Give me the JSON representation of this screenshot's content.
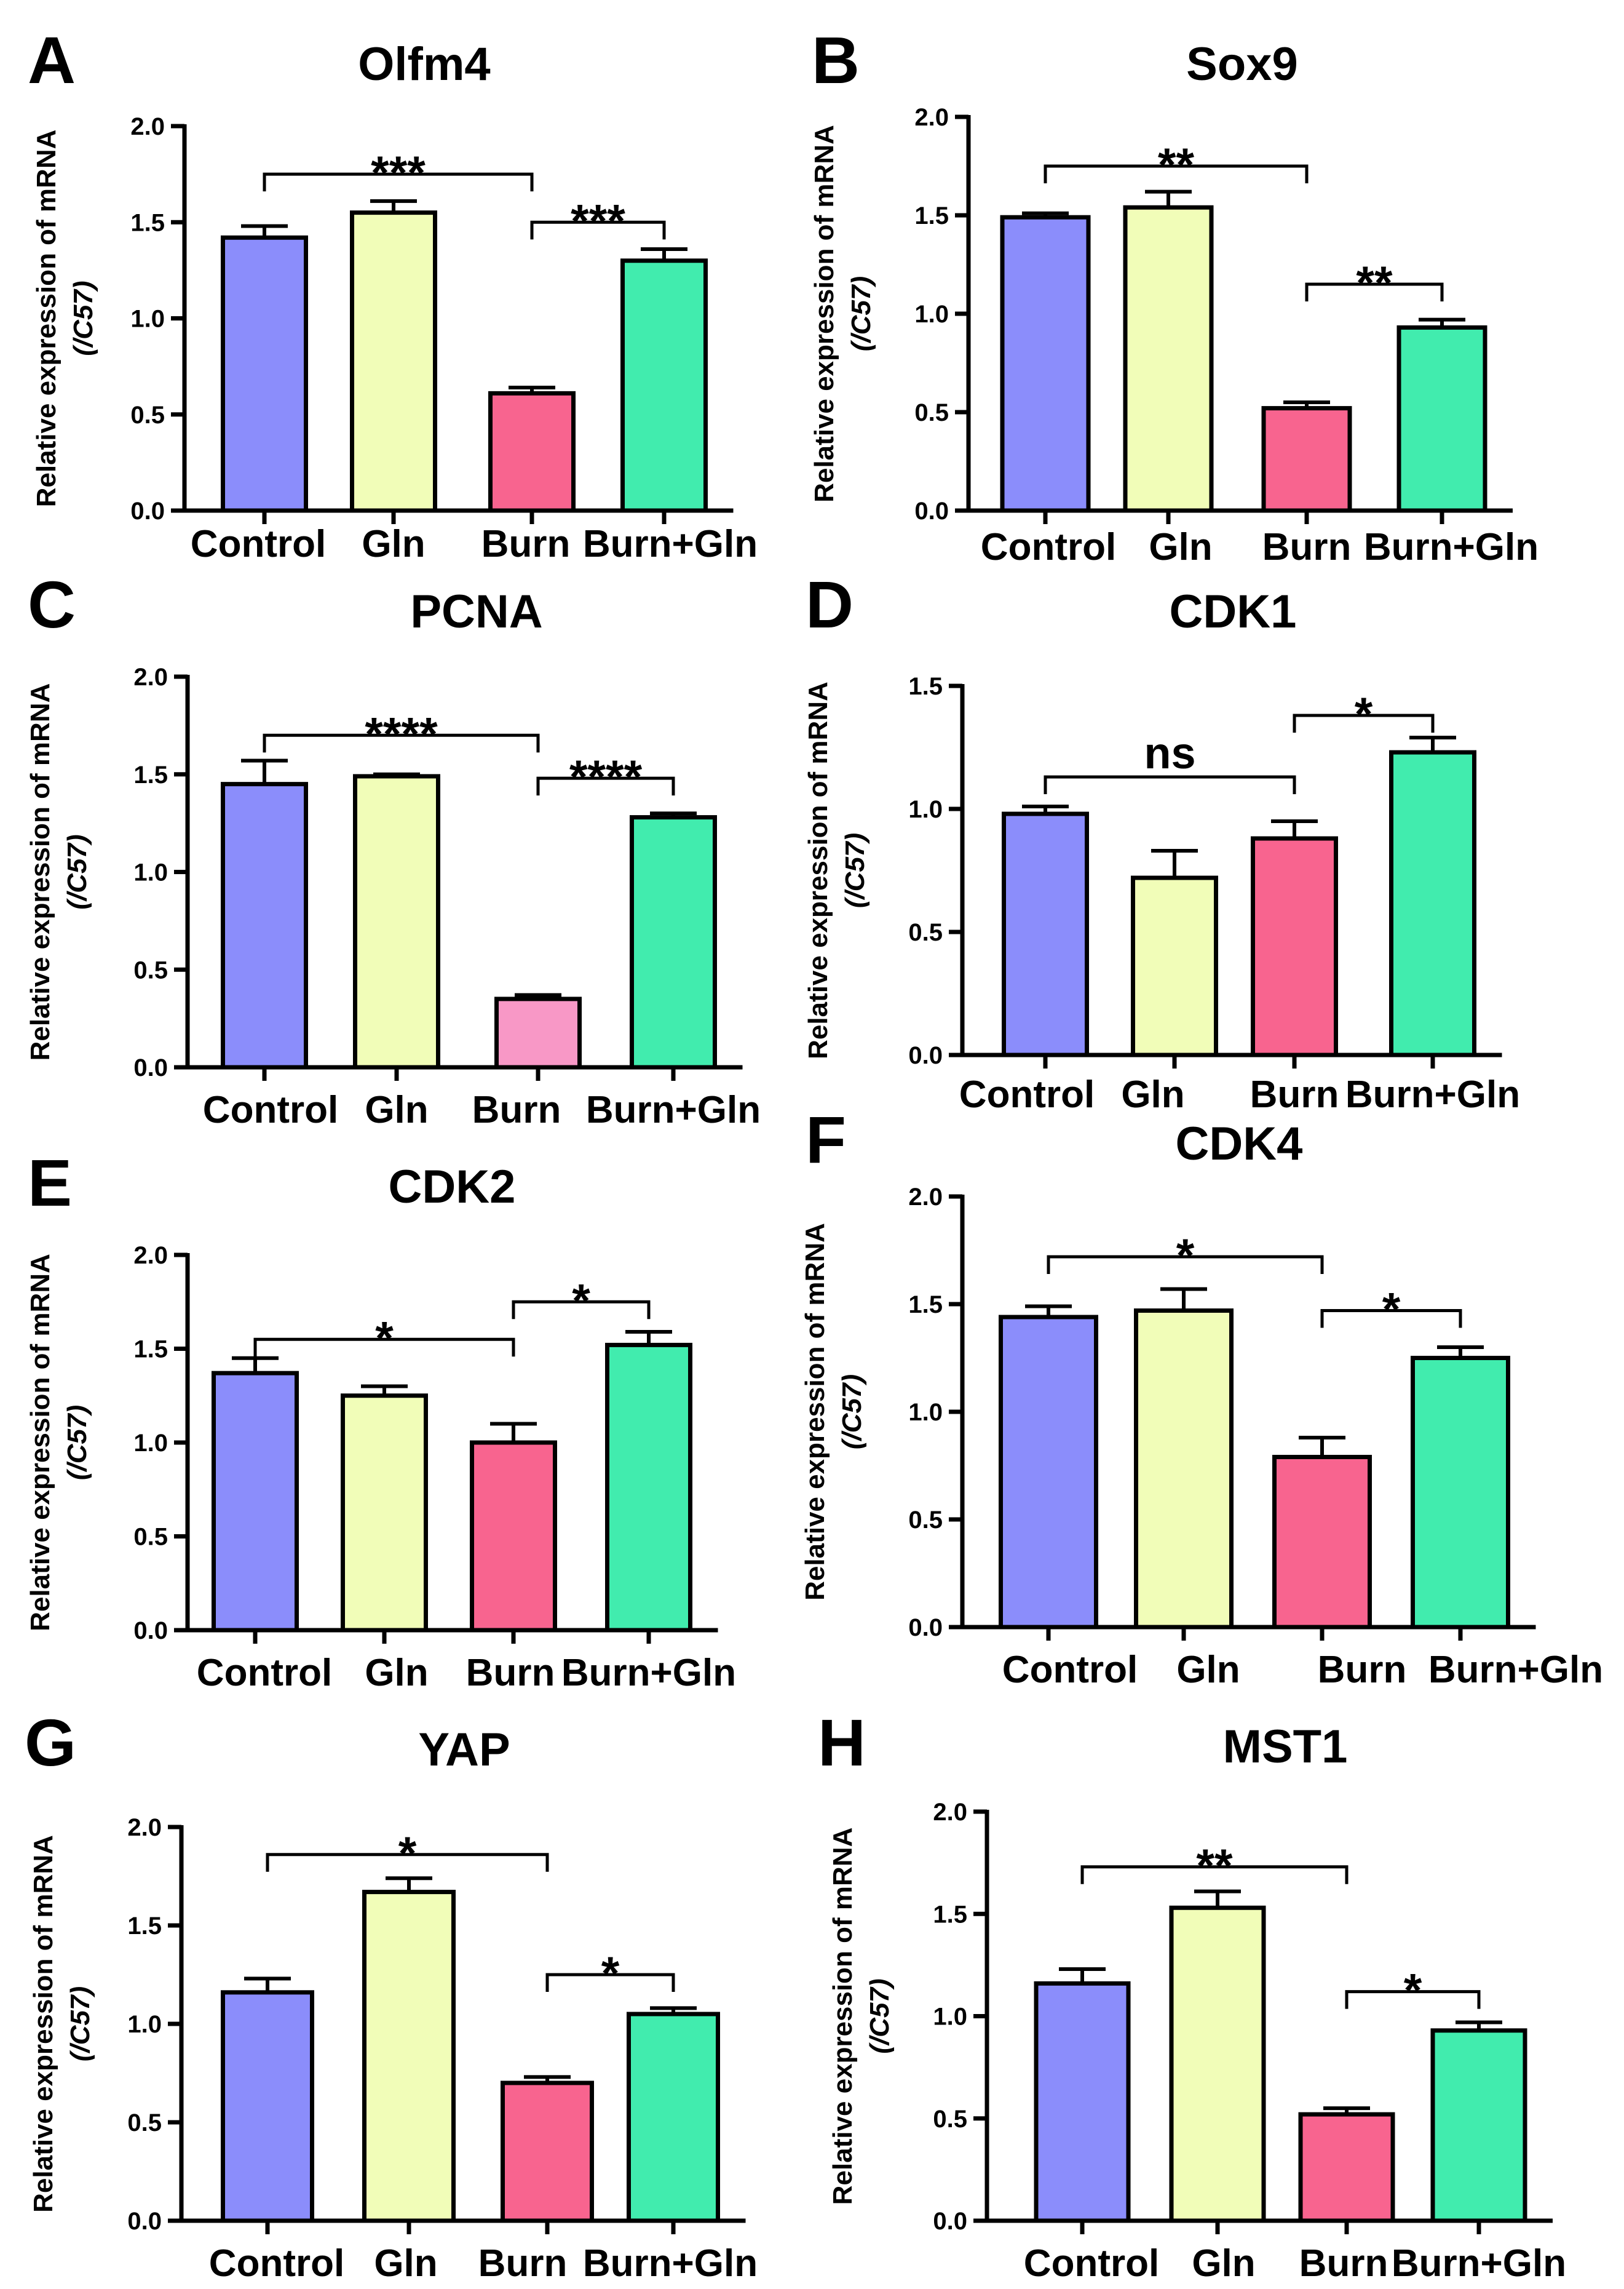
{
  "colors": {
    "Control": "#8b8dfb",
    "Gln": "#f1fdb8",
    "Burn": "#f8648f",
    "Burn_PCNA": "#f898c6",
    "Burn+Gln": "#41ecae",
    "axis": "#000000"
  },
  "chart_data": [
    {
      "panel": "A",
      "type": "bar",
      "title": "Olfm4",
      "ylabel": "Relative expression of mRNA",
      "ylabel2": "(/C57)",
      "categories": [
        "Control",
        "Gln",
        "Burn",
        "Burn+Gln"
      ],
      "values": [
        1.42,
        1.55,
        0.61,
        1.3
      ],
      "errors": [
        0.06,
        0.06,
        0.03,
        0.06
      ],
      "ylim": [
        0,
        2.0
      ],
      "yticks": [
        "0.0",
        "0.5",
        "1.0",
        "1.5",
        "2.0"
      ],
      "brackets": [
        {
          "from": 0,
          "to": 2,
          "label": "***",
          "y": 1.75
        },
        {
          "from": 2,
          "to": 3,
          "label": "***",
          "y": 1.5
        }
      ]
    },
    {
      "panel": "B",
      "type": "bar",
      "title": "Sox9",
      "ylabel": "Relative expression of mRNA",
      "ylabel2": "(/C57)",
      "categories": [
        "Control",
        "Gln",
        "Burn",
        "Burn+Gln"
      ],
      "values": [
        1.49,
        1.54,
        0.52,
        0.93
      ],
      "errors": [
        0.02,
        0.08,
        0.03,
        0.04
      ],
      "ylim": [
        0,
        2.0
      ],
      "yticks": [
        "0.0",
        "0.5",
        "1.0",
        "1.5",
        "2.0"
      ],
      "brackets": [
        {
          "from": 0,
          "to": 2,
          "label": "**",
          "y": 1.75
        },
        {
          "from": 2,
          "to": 3,
          "label": "**",
          "y": 1.15
        }
      ]
    },
    {
      "panel": "C",
      "type": "bar",
      "title": "PCNA",
      "ylabel": "Relative expression of mRNA",
      "ylabel2": "(/C57)",
      "categories": [
        "Control",
        "Gln",
        "Burn",
        "Burn+Gln"
      ],
      "values": [
        1.45,
        1.49,
        0.35,
        1.28
      ],
      "errors": [
        0.12,
        0.01,
        0.02,
        0.02
      ],
      "ylim": [
        0,
        2.0
      ],
      "yticks": [
        "0.0",
        "0.5",
        "1.0",
        "1.5",
        "2.0"
      ],
      "burnColorKey": "Burn_PCNA",
      "brackets": [
        {
          "from": 0,
          "to": 2,
          "label": "****",
          "y": 1.7
        },
        {
          "from": 2,
          "to": 3,
          "label": "****",
          "y": 1.48
        }
      ]
    },
    {
      "panel": "D",
      "type": "bar",
      "title": "CDK1",
      "ylabel": "Relative expression of mRNA",
      "ylabel2": "(/C57)",
      "categories": [
        "Control",
        "Gln",
        "Burn",
        "Burn+Gln"
      ],
      "values": [
        0.98,
        0.72,
        0.88,
        1.23
      ],
      "errors": [
        0.03,
        0.11,
        0.07,
        0.06
      ],
      "ylim": [
        0,
        1.5
      ],
      "yticks": [
        "0.0",
        "0.5",
        "1.0",
        "1.5"
      ],
      "brackets": [
        {
          "from": 0,
          "to": 2,
          "label": "ns",
          "y": 1.13
        },
        {
          "from": 2,
          "to": 3,
          "label": "*",
          "y": 1.38
        }
      ]
    },
    {
      "panel": "E",
      "type": "bar",
      "title": "CDK2",
      "ylabel": "Relative expression of mRNA",
      "ylabel2": "(/C57)",
      "categories": [
        "Control",
        "Gln",
        "Burn",
        "Burn+Gln"
      ],
      "values": [
        1.37,
        1.25,
        1.0,
        1.52
      ],
      "errors": [
        0.08,
        0.05,
        0.1,
        0.07
      ],
      "ylim": [
        0,
        2.0
      ],
      "yticks": [
        "0.0",
        "0.5",
        "1.0",
        "1.5",
        "2.0"
      ],
      "brackets": [
        {
          "from": 0,
          "to": 2,
          "label": "*",
          "y": 1.55
        },
        {
          "from": 2,
          "to": 3,
          "label": "*",
          "y": 1.75
        }
      ]
    },
    {
      "panel": "F",
      "type": "bar",
      "title": "CDK4",
      "ylabel": "Relative expression of mRNA",
      "ylabel2": "(/C57)",
      "categories": [
        "Control",
        "Gln",
        "Burn",
        "Burn+Gln"
      ],
      "values": [
        1.44,
        1.47,
        0.79,
        1.25
      ],
      "errors": [
        0.05,
        0.1,
        0.09,
        0.05
      ],
      "ylim": [
        0,
        2.0
      ],
      "yticks": [
        "0.0",
        "0.5",
        "1.0",
        "1.5",
        "2.0"
      ],
      "brackets": [
        {
          "from": 0,
          "to": 2,
          "label": "*",
          "y": 1.72
        },
        {
          "from": 2,
          "to": 3,
          "label": "*",
          "y": 1.47
        }
      ]
    },
    {
      "panel": "G",
      "type": "bar",
      "title": "YAP",
      "ylabel": "Relative expression of mRNA",
      "ylabel2": "(/C57)",
      "categories": [
        "Control",
        "Gln",
        "Burn",
        "Burn+Gln"
      ],
      "values": [
        1.16,
        1.67,
        0.7,
        1.05
      ],
      "errors": [
        0.07,
        0.07,
        0.03,
        0.03
      ],
      "ylim": [
        0,
        2.0
      ],
      "yticks": [
        "0.0",
        "0.5",
        "1.0",
        "1.5",
        "2.0"
      ],
      "brackets": [
        {
          "from": 0,
          "to": 2,
          "label": "*",
          "y": 1.86
        },
        {
          "from": 2,
          "to": 3,
          "label": "*",
          "y": 1.25
        }
      ]
    },
    {
      "panel": "H",
      "type": "bar",
      "title": "MST1",
      "ylabel": "Relative expression of mRNA",
      "ylabel2": "(/C57)",
      "categories": [
        "Control",
        "Gln",
        "Burn",
        "Burn+Gln"
      ],
      "values": [
        1.16,
        1.53,
        0.52,
        0.93
      ],
      "errors": [
        0.07,
        0.08,
        0.03,
        0.04
      ],
      "ylim": [
        0,
        2.0
      ],
      "yticks": [
        "0.0",
        "0.5",
        "1.0",
        "1.5",
        "2.0"
      ],
      "brackets": [
        {
          "from": 0,
          "to": 2,
          "label": "**",
          "y": 1.73
        },
        {
          "from": 2,
          "to": 3,
          "label": "*",
          "y": 1.12
        }
      ]
    }
  ]
}
